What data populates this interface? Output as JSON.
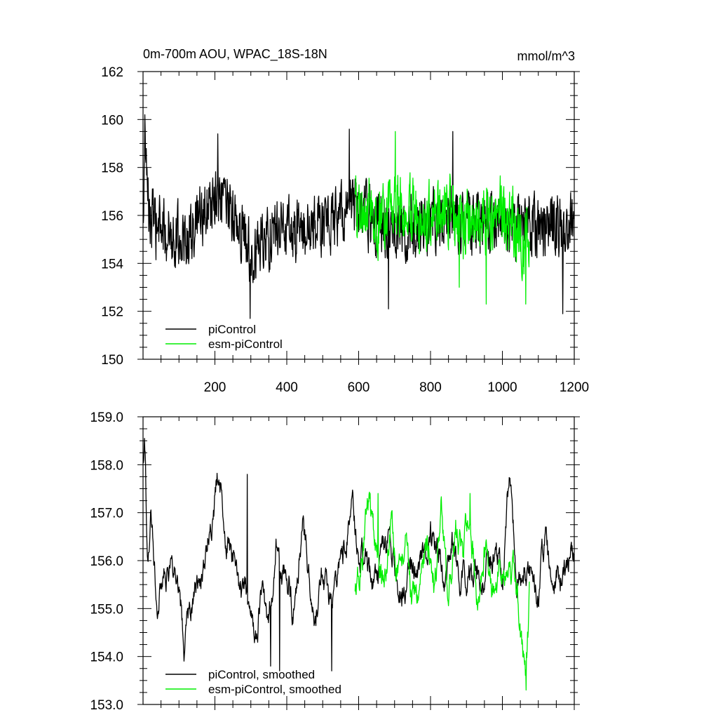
{
  "chart_data": [
    {
      "type": "line",
      "title_left": "0m-700m AOU, WPAC_18S-18N",
      "title_right": "mmol/m^3",
      "xlim": [
        0,
        1200
      ],
      "ylim": [
        150,
        162
      ],
      "x_ticks": [
        200,
        400,
        600,
        800,
        1000,
        1200
      ],
      "x_tick_labels": [
        "200",
        "400",
        "600",
        "800",
        "1000",
        "1200"
      ],
      "y_ticks": [
        150,
        152,
        154,
        156,
        158,
        160,
        162
      ],
      "y_tick_labels": [
        "150",
        "152",
        "154",
        "156",
        "158",
        "160",
        "162"
      ],
      "grid": false,
      "legend_position": "bottom-left",
      "colors": {
        "piControl": "#000000",
        "esm-piControl": "#00ee00"
      },
      "legend": [
        "piControl",
        "esm-piControl"
      ],
      "series": [
        {
          "name": "piControl",
          "color": "#000000",
          "x_range": [
            1,
            1200
          ],
          "step": 1,
          "mean": 155.8,
          "amplitude": 1.3,
          "anchors": [
            [
              1,
              155.0
            ],
            [
              5,
              160.2
            ],
            [
              10,
              157.2
            ],
            [
              20,
              155.9
            ],
            [
              40,
              155.4
            ],
            [
              80,
              155.3
            ],
            [
              120,
              155.0
            ],
            [
              160,
              155.8
            ],
            [
              200,
              156.6
            ],
            [
              240,
              156.2
            ],
            [
              280,
              155.2
            ],
            [
              300,
              154.5
            ],
            [
              340,
              155.0
            ],
            [
              380,
              155.6
            ],
            [
              420,
              155.4
            ],
            [
              460,
              155.4
            ],
            [
              500,
              155.6
            ],
            [
              540,
              155.8
            ],
            [
              580,
              156.5
            ],
            [
              620,
              156.0
            ],
            [
              680,
              155.6
            ],
            [
              740,
              155.4
            ],
            [
              800,
              155.8
            ],
            [
              860,
              156.0
            ],
            [
              920,
              155.6
            ],
            [
              980,
              155.8
            ],
            [
              1040,
              155.6
            ],
            [
              1080,
              155.6
            ],
            [
              1120,
              155.6
            ],
            [
              1160,
              155.5
            ],
            [
              1200,
              155.6
            ]
          ],
          "extremes": [
            [
              5,
              160.2
            ],
            [
              298,
              151.7
            ],
            [
              683,
              152.1
            ],
            [
              1168,
              151.9
            ],
            [
              574,
              159.6
            ],
            [
              862,
              159.5
            ],
            [
              208,
              159.4
            ]
          ]
        },
        {
          "name": "esm-piControl",
          "color": "#00ee00",
          "x_range": [
            590,
            1075
          ],
          "step": 1,
          "mean": 156.0,
          "amplitude": 1.4,
          "anchors": [
            [
              590,
              156.2
            ],
            [
              620,
              156.2
            ],
            [
              660,
              155.6
            ],
            [
              700,
              156.8
            ],
            [
              740,
              156.2
            ],
            [
              780,
              155.8
            ],
            [
              820,
              156.0
            ],
            [
              860,
              156.4
            ],
            [
              880,
              155.4
            ],
            [
              920,
              156.0
            ],
            [
              960,
              155.6
            ],
            [
              1000,
              156.2
            ],
            [
              1040,
              155.6
            ],
            [
              1060,
              154.6
            ],
            [
              1075,
              155.2
            ]
          ],
          "extremes": [
            [
              702,
              159.5
            ],
            [
              1065,
              152.3
            ],
            [
              955,
              152.3
            ],
            [
              880,
              153.0
            ]
          ]
        }
      ]
    },
    {
      "type": "line",
      "xlim": [
        0,
        1200
      ],
      "ylim": [
        153.0,
        159.0
      ],
      "x_ticks": [
        200,
        400,
        600,
        800,
        1000,
        1200
      ],
      "x_tick_labels": [],
      "y_ticks": [
        153.0,
        154.0,
        155.0,
        156.0,
        157.0,
        158.0,
        159.0
      ],
      "y_tick_labels": [
        "153.0",
        "154.0",
        "155.0",
        "156.0",
        "157.0",
        "158.0",
        "159.0"
      ],
      "grid": false,
      "legend_position": "bottom-left",
      "legend": [
        "piControl, smoothed",
        "esm-piControl, smoothed"
      ],
      "series": [
        {
          "name": "piControl, smoothed",
          "color": "#000000",
          "x_range": [
            1,
            1200
          ],
          "step": 1,
          "amplitude": 0.35,
          "anchors": [
            [
              1,
              157.9
            ],
            [
              5,
              158.3
            ],
            [
              12,
              156.0
            ],
            [
              22,
              157.3
            ],
            [
              40,
              155.2
            ],
            [
              60,
              155.6
            ],
            [
              80,
              156.0
            ],
            [
              100,
              155.4
            ],
            [
              115,
              154.2
            ],
            [
              140,
              155.2
            ],
            [
              170,
              156.0
            ],
            [
              190,
              156.8
            ],
            [
              208,
              157.7
            ],
            [
              230,
              156.6
            ],
            [
              250,
              156.2
            ],
            [
              270,
              155.4
            ],
            [
              290,
              155.2
            ],
            [
              310,
              154.5
            ],
            [
              330,
              155.2
            ],
            [
              350,
              154.6
            ],
            [
              370,
              156.4
            ],
            [
              385,
              155.8
            ],
            [
              400,
              155.8
            ],
            [
              420,
              155.0
            ],
            [
              445,
              156.8
            ],
            [
              460,
              155.6
            ],
            [
              480,
              155.0
            ],
            [
              500,
              155.8
            ],
            [
              520,
              155.0
            ],
            [
              540,
              155.6
            ],
            [
              560,
              156.2
            ],
            [
              580,
              157.4
            ],
            [
              600,
              156.0
            ],
            [
              620,
              156.0
            ],
            [
              640,
              155.4
            ],
            [
              660,
              155.8
            ],
            [
              680,
              156.4
            ],
            [
              700,
              155.8
            ],
            [
              720,
              155.0
            ],
            [
              740,
              155.8
            ],
            [
              760,
              155.6
            ],
            [
              780,
              156.2
            ],
            [
              800,
              156.6
            ],
            [
              820,
              156.0
            ],
            [
              840,
              155.6
            ],
            [
              860,
              156.4
            ],
            [
              880,
              155.4
            ],
            [
              900,
              155.6
            ],
            [
              920,
              155.8
            ],
            [
              940,
              155.4
            ],
            [
              960,
              156.0
            ],
            [
              980,
              156.2
            ],
            [
              1000,
              155.6
            ],
            [
              1020,
              157.7
            ],
            [
              1040,
              155.6
            ],
            [
              1060,
              155.8
            ],
            [
              1080,
              155.6
            ],
            [
              1100,
              155.4
            ],
            [
              1120,
              156.6
            ],
            [
              1140,
              155.2
            ],
            [
              1160,
              155.6
            ],
            [
              1180,
              156.0
            ],
            [
              1200,
              156.2
            ]
          ],
          "extremes": [
            [
              5,
              158.3
            ],
            [
              290,
              157.8
            ],
            [
              355,
              153.8
            ],
            [
              380,
              153.7
            ],
            [
              525,
              153.7
            ],
            [
              1020,
              157.7
            ]
          ]
        },
        {
          "name": "esm-piControl, smoothed",
          "color": "#00ee00",
          "x_range": [
            590,
            1075
          ],
          "step": 1,
          "amplitude": 0.4,
          "anchors": [
            [
              590,
              155.2
            ],
            [
              610,
              156.0
            ],
            [
              630,
              157.2
            ],
            [
              650,
              156.2
            ],
            [
              670,
              155.6
            ],
            [
              690,
              156.8
            ],
            [
              710,
              155.8
            ],
            [
              730,
              156.4
            ],
            [
              750,
              155.2
            ],
            [
              770,
              155.6
            ],
            [
              790,
              156.2
            ],
            [
              810,
              155.4
            ],
            [
              830,
              157.2
            ],
            [
              850,
              155.2
            ],
            [
              870,
              156.6
            ],
            [
              890,
              156.0
            ],
            [
              910,
              157.4
            ],
            [
              930,
              155.0
            ],
            [
              950,
              156.2
            ],
            [
              970,
              155.4
            ],
            [
              990,
              156.0
            ],
            [
              1010,
              155.6
            ],
            [
              1030,
              155.8
            ],
            [
              1050,
              154.6
            ],
            [
              1066,
              153.3
            ],
            [
              1075,
              155.0
            ]
          ],
          "extremes": [
            [
              1066,
              153.3
            ],
            [
              910,
              157.4
            ],
            [
              654,
              157.4
            ]
          ]
        }
      ]
    }
  ]
}
